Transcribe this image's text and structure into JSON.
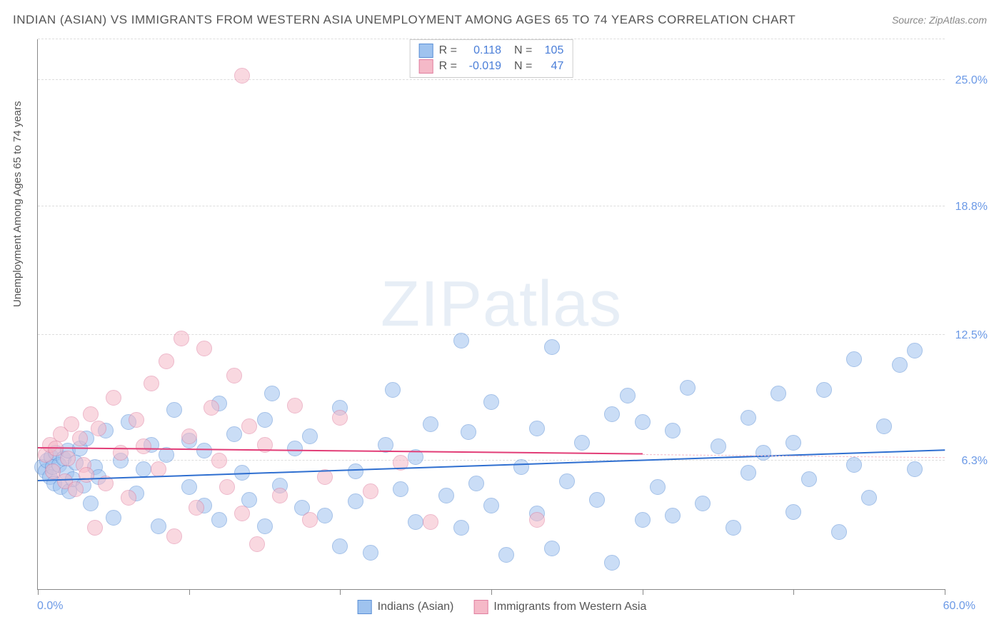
{
  "title": "INDIAN (ASIAN) VS IMMIGRANTS FROM WESTERN ASIA UNEMPLOYMENT AMONG AGES 65 TO 74 YEARS CORRELATION CHART",
  "source": "Source: ZipAtlas.com",
  "ylabel": "Unemployment Among Ages 65 to 74 years",
  "watermark_a": "ZIP",
  "watermark_b": "atlas",
  "chart": {
    "type": "scatter",
    "xlim": [
      0,
      60
    ],
    "ylim": [
      0,
      27
    ],
    "xtick_positions": [
      0,
      10,
      20,
      30,
      40,
      50,
      60
    ],
    "grid_y": [
      6.3,
      12.5,
      18.8,
      25.0,
      27.0
    ],
    "y_labels": [
      {
        "v": 6.3,
        "t": "6.3%"
      },
      {
        "v": 12.5,
        "t": "12.5%"
      },
      {
        "v": 18.8,
        "t": "18.8%"
      },
      {
        "v": 25.0,
        "t": "25.0%"
      }
    ],
    "xmin_label": "0.0%",
    "xmax_label": "60.0%",
    "background_color": "#ffffff",
    "grid_color": "#dddddd",
    "point_radius": 10,
    "point_opacity": 0.55,
    "series": [
      {
        "key": "indians",
        "label": "Indians (Asian)",
        "fill": "#9fc3ef",
        "stroke": "#5b8fd6",
        "trend_color": "#2f6fd0",
        "dash_color": "#9fc3ef",
        "R": "0.118",
        "N": "105",
        "trend": {
          "x0": 0,
          "y0": 5.3,
          "x1": 60,
          "y1": 6.8,
          "dash_x1": 60
        },
        "points": [
          [
            0.3,
            6.0
          ],
          [
            0.5,
            5.8
          ],
          [
            0.6,
            6.3
          ],
          [
            0.8,
            5.5
          ],
          [
            0.9,
            6.5
          ],
          [
            1.0,
            6.0
          ],
          [
            1.1,
            5.2
          ],
          [
            1.2,
            6.7
          ],
          [
            1.4,
            6.1
          ],
          [
            1.5,
            5.0
          ],
          [
            1.7,
            6.4
          ],
          [
            1.9,
            5.7
          ],
          [
            2.0,
            6.8
          ],
          [
            2.1,
            4.8
          ],
          [
            2.3,
            5.4
          ],
          [
            2.5,
            6.2
          ],
          [
            2.8,
            6.9
          ],
          [
            3.0,
            5.1
          ],
          [
            3.2,
            7.4
          ],
          [
            3.5,
            4.2
          ],
          [
            3.8,
            6.0
          ],
          [
            4.0,
            5.5
          ],
          [
            4.5,
            7.8
          ],
          [
            5.0,
            3.5
          ],
          [
            5.5,
            6.3
          ],
          [
            6.0,
            8.2
          ],
          [
            6.5,
            4.7
          ],
          [
            7.0,
            5.9
          ],
          [
            7.5,
            7.1
          ],
          [
            8.0,
            3.1
          ],
          [
            8.5,
            6.6
          ],
          [
            9.0,
            8.8
          ],
          [
            10.0,
            7.3
          ],
          [
            10.0,
            5.0
          ],
          [
            11.0,
            4.1
          ],
          [
            11.0,
            6.8
          ],
          [
            12.0,
            9.1
          ],
          [
            12.0,
            3.4
          ],
          [
            13.0,
            7.6
          ],
          [
            13.5,
            5.7
          ],
          [
            14.0,
            4.4
          ],
          [
            15.0,
            8.3
          ],
          [
            15.0,
            3.1
          ],
          [
            15.5,
            9.6
          ],
          [
            16.0,
            5.1
          ],
          [
            17.0,
            6.9
          ],
          [
            17.5,
            4.0
          ],
          [
            18.0,
            7.5
          ],
          [
            19.0,
            3.6
          ],
          [
            20.0,
            8.9
          ],
          [
            20.0,
            2.1
          ],
          [
            21.0,
            5.8
          ],
          [
            21.0,
            4.3
          ],
          [
            22.0,
            1.8
          ],
          [
            23.0,
            7.1
          ],
          [
            23.5,
            9.8
          ],
          [
            24.0,
            4.9
          ],
          [
            25.0,
            3.3
          ],
          [
            25.0,
            6.5
          ],
          [
            26.0,
            8.1
          ],
          [
            27.0,
            4.6
          ],
          [
            28.0,
            12.2
          ],
          [
            28.0,
            3.0
          ],
          [
            28.5,
            7.7
          ],
          [
            29.0,
            5.2
          ],
          [
            30.0,
            4.1
          ],
          [
            30.0,
            9.2
          ],
          [
            31.0,
            1.7
          ],
          [
            32.0,
            6.0
          ],
          [
            33.0,
            3.7
          ],
          [
            33.0,
            7.9
          ],
          [
            34.0,
            11.9
          ],
          [
            34.0,
            2.0
          ],
          [
            35.0,
            5.3
          ],
          [
            36.0,
            7.2
          ],
          [
            37.0,
            4.4
          ],
          [
            38.0,
            8.6
          ],
          [
            38.0,
            1.3
          ],
          [
            39.0,
            9.5
          ],
          [
            40.0,
            8.2
          ],
          [
            40.0,
            3.4
          ],
          [
            41.0,
            5.0
          ],
          [
            42.0,
            7.8
          ],
          [
            42.0,
            3.6
          ],
          [
            43.0,
            9.9
          ],
          [
            44.0,
            4.2
          ],
          [
            45.0,
            7.0
          ],
          [
            46.0,
            3.0
          ],
          [
            47.0,
            8.4
          ],
          [
            47.0,
            5.7
          ],
          [
            48.0,
            6.7
          ],
          [
            49.0,
            9.6
          ],
          [
            50.0,
            3.8
          ],
          [
            50.0,
            7.2
          ],
          [
            51.0,
            5.4
          ],
          [
            52.0,
            9.8
          ],
          [
            53.0,
            2.8
          ],
          [
            54.0,
            6.1
          ],
          [
            54.0,
            11.3
          ],
          [
            55.0,
            4.5
          ],
          [
            56.0,
            8.0
          ],
          [
            57.0,
            11.0
          ],
          [
            58.0,
            5.9
          ],
          [
            58.0,
            11.7
          ]
        ]
      },
      {
        "key": "western_asia",
        "label": "Immigrants from Western Asia",
        "fill": "#f5b9c8",
        "stroke": "#e07fa0",
        "trend_color": "#e23d77",
        "dash_color": "#f5b9c8",
        "R": "-0.019",
        "N": "47",
        "trend": {
          "x0": 0,
          "y0": 6.9,
          "x1": 40,
          "y1": 6.6,
          "dash_x1": 60
        },
        "points": [
          [
            0.5,
            6.6
          ],
          [
            0.8,
            7.1
          ],
          [
            1.0,
            5.8
          ],
          [
            1.2,
            6.9
          ],
          [
            1.5,
            7.6
          ],
          [
            1.8,
            5.3
          ],
          [
            2.0,
            6.4
          ],
          [
            2.2,
            8.1
          ],
          [
            2.5,
            4.9
          ],
          [
            2.8,
            7.4
          ],
          [
            3.0,
            6.1
          ],
          [
            3.2,
            5.6
          ],
          [
            3.5,
            8.6
          ],
          [
            3.8,
            3.0
          ],
          [
            4.0,
            7.9
          ],
          [
            4.5,
            5.2
          ],
          [
            5.0,
            9.4
          ],
          [
            5.5,
            6.7
          ],
          [
            6.0,
            4.5
          ],
          [
            6.5,
            8.3
          ],
          [
            7.0,
            7.0
          ],
          [
            7.5,
            10.1
          ],
          [
            8.0,
            5.9
          ],
          [
            8.5,
            11.2
          ],
          [
            9.0,
            2.6
          ],
          [
            9.5,
            12.3
          ],
          [
            10.0,
            7.5
          ],
          [
            10.5,
            4.0
          ],
          [
            11.0,
            11.8
          ],
          [
            11.5,
            8.9
          ],
          [
            12.0,
            6.3
          ],
          [
            12.5,
            5.0
          ],
          [
            13.0,
            10.5
          ],
          [
            13.5,
            3.7
          ],
          [
            14.0,
            8.0
          ],
          [
            14.5,
            2.2
          ],
          [
            15.0,
            7.1
          ],
          [
            16.0,
            4.6
          ],
          [
            17.0,
            9.0
          ],
          [
            18.0,
            3.4
          ],
          [
            19.0,
            5.5
          ],
          [
            20.0,
            8.4
          ],
          [
            22.0,
            4.8
          ],
          [
            24.0,
            6.2
          ],
          [
            26.0,
            3.3
          ],
          [
            33.0,
            3.4
          ],
          [
            13.5,
            25.2
          ]
        ]
      }
    ],
    "bottom_legend": [
      {
        "swatch_fill": "#9fc3ef",
        "swatch_stroke": "#5b8fd6",
        "label": "Indians (Asian)"
      },
      {
        "swatch_fill": "#f5b9c8",
        "swatch_stroke": "#e07fa0",
        "label": "Immigrants from Western Asia"
      }
    ]
  }
}
